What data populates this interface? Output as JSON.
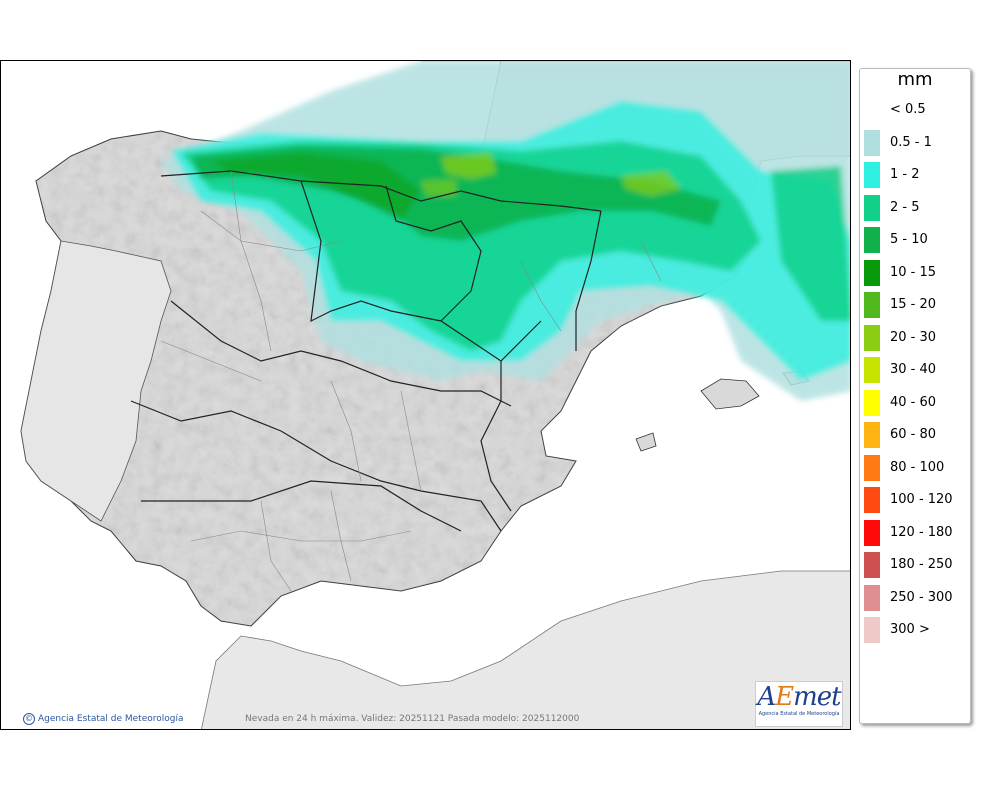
{
  "legend": {
    "unit": "mm",
    "items": [
      {
        "label": "< 0.5",
        "color": "#ffffff"
      },
      {
        "label": "0.5 - 1",
        "color": "#b1dfe0"
      },
      {
        "label": "1 - 2",
        "color": "#2ef0e0"
      },
      {
        "label": "2 - 5",
        "color": "#10d08a"
      },
      {
        "label": "5 - 10",
        "color": "#10b04a"
      },
      {
        "label": "10 - 15",
        "color": "#089a0a"
      },
      {
        "label": "15 - 20",
        "color": "#50b81c"
      },
      {
        "label": "20 - 30",
        "color": "#8acd13"
      },
      {
        "label": "30 - 40",
        "color": "#c6e400"
      },
      {
        "label": "40 - 60",
        "color": "#ffff00"
      },
      {
        "label": "60 - 80",
        "color": "#ffb412"
      },
      {
        "label": "80 - 100",
        "color": "#ff7a12"
      },
      {
        "label": "100 - 120",
        "color": "#ff4a12"
      },
      {
        "label": "120 - 180",
        "color": "#ff0a0a"
      },
      {
        "label": "180 - 250",
        "color": "#cf5050"
      },
      {
        "label": "250 - 300",
        "color": "#df8f8f"
      },
      {
        "label": "300 >",
        "color": "#efc8c8"
      }
    ]
  },
  "map": {
    "credit": "Agencia Estatal de Meteorología",
    "caption": "Nevada en 24 h máxima. Validez: 20251121 Pasada modelo: 2025112000",
    "logo_text": "AEmet",
    "logo_subtitle": "Agencia Estatal de Meteorología"
  }
}
